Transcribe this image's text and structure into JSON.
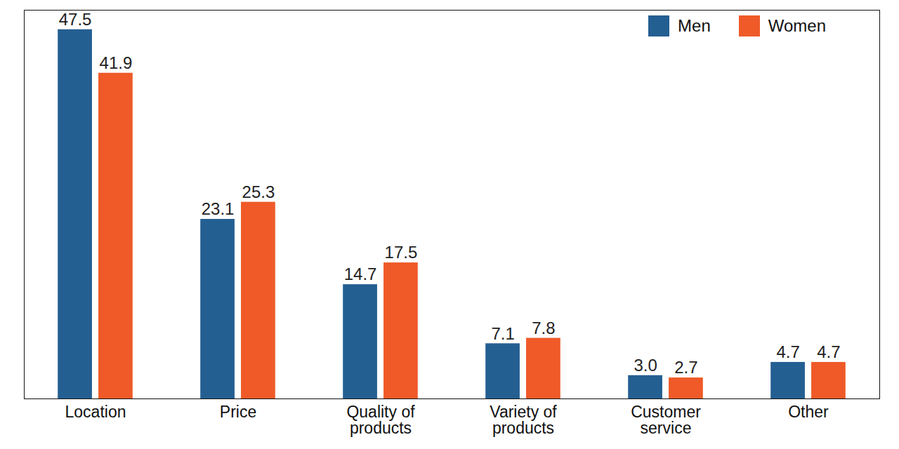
{
  "chart_data": {
    "type": "bar",
    "categories": [
      "Location",
      "Price",
      "Quality of products",
      "Variety of products",
      "Customer service",
      "Other"
    ],
    "series": [
      {
        "name": "Men",
        "color": "#245f92",
        "values": [
          47.5,
          23.1,
          14.7,
          7.1,
          3.0,
          4.7
        ],
        "value_labels": [
          "47.5",
          "23.1",
          "14.7",
          "7.1",
          "3.0",
          "4.7"
        ]
      },
      {
        "name": "Women",
        "color": "#ef5a28",
        "values": [
          41.9,
          25.3,
          17.5,
          7.8,
          2.7,
          4.7
        ],
        "value_labels": [
          "41.9",
          "25.3",
          "17.5",
          "7.8",
          "2.7",
          "4.7"
        ]
      }
    ],
    "ylim": [
      0,
      50
    ],
    "yticks": [],
    "grid": false,
    "data_labels": true,
    "tick_labels": "x",
    "legend": "top-right"
  }
}
